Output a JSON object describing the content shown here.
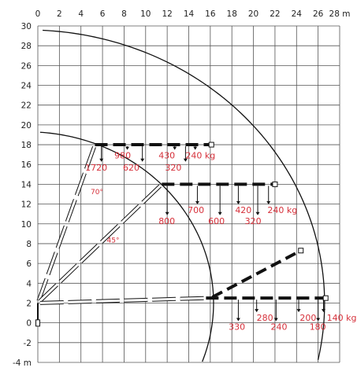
{
  "diagram": {
    "x_unit": "m",
    "y_unit": "m",
    "load_unit": "kg",
    "x_range": [
      0,
      28
    ],
    "y_range": [
      -4,
      30
    ],
    "x_ticks": [
      "0",
      "2",
      "4",
      "6",
      "8",
      "10",
      "12",
      "14",
      "16",
      "18",
      "20",
      "22",
      "24",
      "26",
      "28 m"
    ],
    "y_ticks": [
      "30",
      "28",
      "26",
      "24",
      "22",
      "20",
      "18",
      "16",
      "14",
      "12",
      "10",
      "8",
      "6",
      "4",
      "2",
      "0",
      "-2",
      "-4 m"
    ],
    "angles": [
      {
        "text": "70°",
        "x": 4.9,
        "y": 13.0
      },
      {
        "text": "45°",
        "x": 6.4,
        "y": 8.1
      }
    ],
    "booms": [
      {
        "name": "boom-70",
        "base": [
          -0.6,
          2.0
        ],
        "knuckle": [
          5.3,
          18.0
        ],
        "jib_end": [
          16.1,
          18.0
        ],
        "arc_radius": 19.2,
        "weights": [
          {
            "text": "1720",
            "x": 4.4,
            "y": 15.4,
            "arrow_x": 5.9
          },
          {
            "text": "980",
            "x": 7.1,
            "y": 16.6,
            "arrow_x": 8.3
          },
          {
            "text": "620",
            "x": 7.9,
            "y": 15.4,
            "arrow_x": 9.7
          },
          {
            "text": "430",
            "x": 11.2,
            "y": 16.6,
            "arrow_x": 12.7
          },
          {
            "text": "320",
            "x": 11.8,
            "y": 15.4,
            "arrow_x": 13.7
          },
          {
            "text": "240 kg",
            "x": 13.7,
            "y": 16.6,
            "arrow_x": 14.6
          }
        ]
      },
      {
        "name": "boom-45",
        "base": [
          -0.6,
          2.0
        ],
        "knuckle": [
          11.5,
          14.0
        ],
        "jib_end": [
          22.0,
          14.0
        ],
        "arc_radius": 19.2,
        "weights": [
          {
            "text": "800",
            "x": 11.2,
            "y": 10.0,
            "arrow_x": 12.0
          },
          {
            "text": "700",
            "x": 13.9,
            "y": 11.1,
            "arrow_x": 14.8
          },
          {
            "text": "600",
            "x": 15.8,
            "y": 10.0,
            "arrow_x": 16.9
          },
          {
            "text": "420",
            "x": 18.3,
            "y": 11.1,
            "arrow_x": 18.6
          },
          {
            "text": "320",
            "x": 19.2,
            "y": 10.0,
            "arrow_x": 20.4
          },
          {
            "text": "240 kg",
            "x": 21.3,
            "y": 11.1,
            "arrow_x": 21.4
          }
        ]
      },
      {
        "name": "boom-0",
        "base": [
          -0.6,
          2.0
        ],
        "knuckle": [
          15.6,
          2.5
        ],
        "jib_end": [
          26.7,
          2.5
        ],
        "arc_radius": 27.0,
        "weights": [
          {
            "text": "330",
            "x": 17.7,
            "y": -0.7,
            "arrow_x": 18.6
          },
          {
            "text": "280",
            "x": 20.3,
            "y": 0.2,
            "arrow_x": 20.3
          },
          {
            "text": "240",
            "x": 21.6,
            "y": -0.7,
            "arrow_x": 22.1
          },
          {
            "text": "200",
            "x": 24.3,
            "y": 0.2,
            "arrow_x": 24.2
          },
          {
            "text": "180",
            "x": 25.2,
            "y": -0.7,
            "arrow_x": 26.0
          },
          {
            "text": "140 kg",
            "x": 26.8,
            "y": 0.2,
            "arrow_x": 26.5
          }
        ]
      }
    ]
  }
}
